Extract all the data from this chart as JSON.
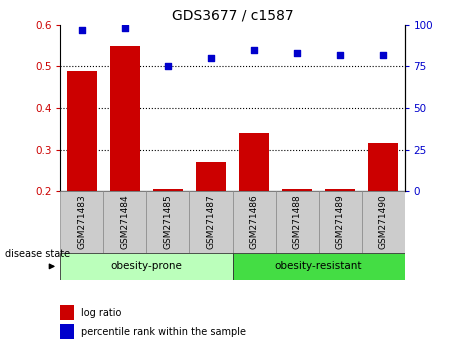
{
  "title": "GDS3677 / c1587",
  "categories": [
    "GSM271483",
    "GSM271484",
    "GSM271485",
    "GSM271487",
    "GSM271486",
    "GSM271488",
    "GSM271489",
    "GSM271490"
  ],
  "log_ratio": [
    0.49,
    0.55,
    0.205,
    0.27,
    0.34,
    0.205,
    0.205,
    0.315
  ],
  "percentile_rank": [
    97,
    98,
    75,
    80,
    85,
    83,
    82,
    82
  ],
  "bar_color": "#cc0000",
  "dot_color": "#0000cc",
  "left_ylim": [
    0.2,
    0.6
  ],
  "left_yticks": [
    0.2,
    0.3,
    0.4,
    0.5,
    0.6
  ],
  "right_ylim": [
    0,
    100
  ],
  "right_yticks": [
    0,
    25,
    50,
    75,
    100
  ],
  "left_ylabel_color": "#cc0000",
  "right_ylabel_color": "#0000cc",
  "group1_label": "obesity-prone",
  "group2_label": "obesity-resistant",
  "group1_indices": [
    0,
    1,
    2,
    3
  ],
  "group2_indices": [
    4,
    5,
    6,
    7
  ],
  "group1_color": "#bbffbb",
  "group2_color": "#44dd44",
  "disease_state_label": "disease state",
  "legend_bar_label": "log ratio",
  "legend_dot_label": "percentile rank within the sample",
  "xlabel_area_color": "#cccccc",
  "background_color": "#ffffff"
}
